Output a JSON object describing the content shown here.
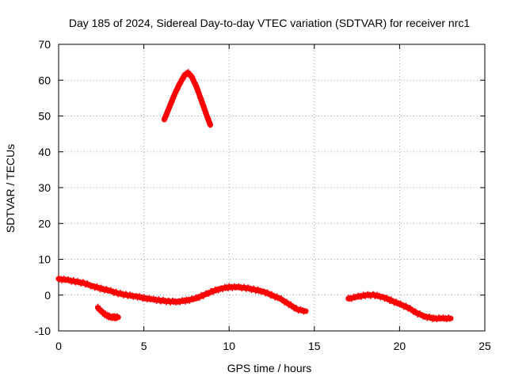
{
  "chart_data": {
    "type": "scatter",
    "title": "Day 185 of 2024, Sidereal Day-to-day VTEC variation (SDTVAR) for receiver nrc1",
    "xlabel": "GPS time / hours",
    "ylabel": "SDTVAR / TECUs",
    "xlim": [
      0,
      25
    ],
    "ylim": [
      -10,
      70
    ],
    "xticks": [
      "0",
      "5",
      "10",
      "15",
      "20",
      "25"
    ],
    "yticks": [
      "-10",
      "0",
      "10",
      "20",
      "30",
      "40",
      "50",
      "60",
      "70"
    ],
    "grid": true,
    "marker": "plus",
    "color": "#ff0000",
    "series": [
      {
        "name": "sdtvar-main-track",
        "x": [
          0.0,
          0.5,
          1.0,
          1.5,
          2.0,
          2.5,
          3.0,
          3.5,
          4.0,
          4.5,
          5.0,
          5.5,
          6.0,
          6.5,
          7.0,
          7.5,
          8.0,
          8.5,
          9.0,
          9.5,
          10.0,
          10.5,
          11.0,
          11.5,
          12.0,
          12.5,
          13.0,
          13.5,
          14.0,
          14.5
        ],
        "y": [
          4.5,
          4.2,
          3.8,
          3.3,
          2.5,
          1.8,
          1.2,
          0.5,
          0.0,
          -0.3,
          -0.8,
          -1.2,
          -1.5,
          -1.8,
          -1.8,
          -1.5,
          -1.0,
          0.0,
          1.0,
          1.8,
          2.2,
          2.2,
          2.0,
          1.5,
          1.0,
          0.0,
          -1.0,
          -2.5,
          -4.0,
          -4.5
        ]
      },
      {
        "name": "sdtvar-small-arc",
        "x": [
          2.3,
          2.5,
          2.7,
          2.9,
          3.1,
          3.3,
          3.5
        ],
        "y": [
          -3.5,
          -4.5,
          -5.3,
          -5.9,
          -6.1,
          -6.2,
          -6.2
        ]
      },
      {
        "name": "sdtvar-high-arc",
        "x": [
          6.2,
          6.5,
          6.8,
          7.1,
          7.4,
          7.6,
          7.8,
          8.1,
          8.4,
          8.7,
          8.9
        ],
        "y": [
          49.0,
          52.5,
          56.0,
          59.0,
          61.5,
          62.0,
          61.0,
          58.0,
          54.0,
          50.0,
          47.5
        ]
      },
      {
        "name": "sdtvar-late-track",
        "x": [
          17.0,
          17.5,
          18.0,
          18.5,
          19.0,
          19.5,
          20.0,
          20.5,
          21.0,
          21.5,
          22.0,
          22.5,
          23.0
        ],
        "y": [
          -1.0,
          -0.5,
          0.0,
          0.0,
          -0.5,
          -1.5,
          -2.5,
          -3.5,
          -5.0,
          -6.0,
          -6.5,
          -6.5,
          -6.5
        ]
      }
    ]
  }
}
